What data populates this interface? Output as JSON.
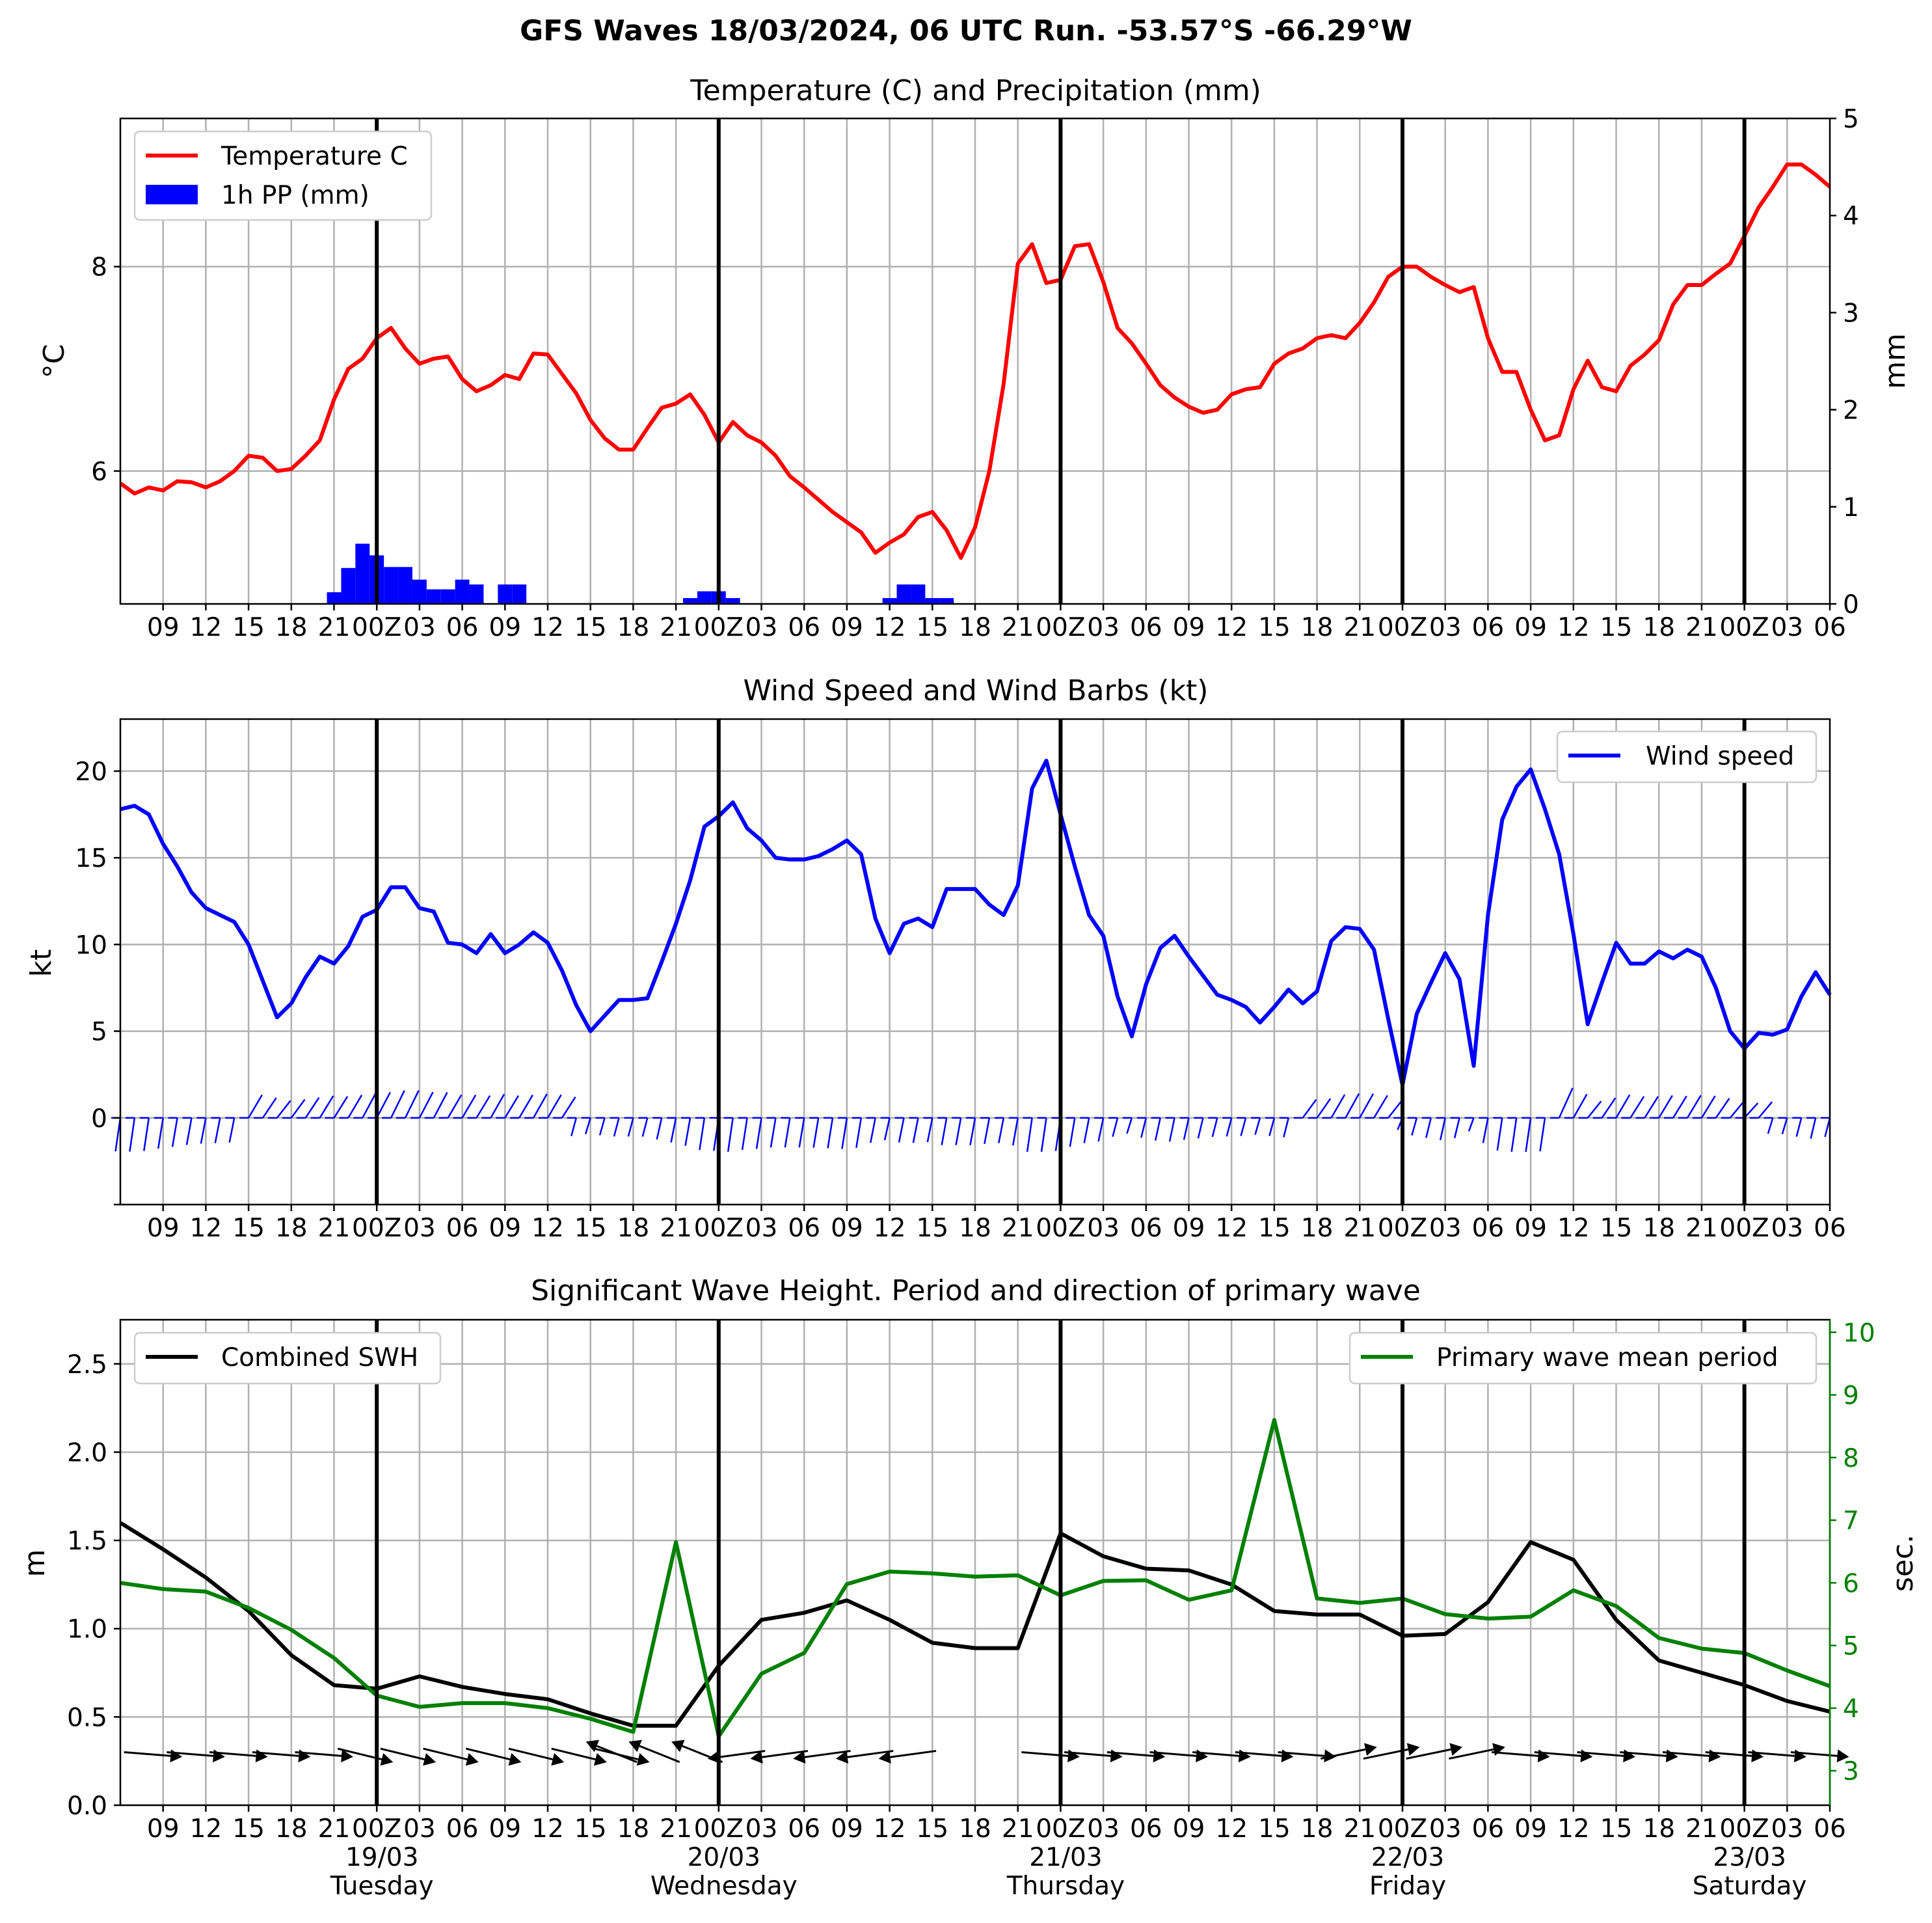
{
  "figure": {
    "suptitle": "GFS Waves 18/03/2024, 06 UTC Run. -53.57°S -66.29°W",
    "x_hour_labels": [
      "09",
      "12",
      "15",
      "18",
      "21",
      "00Z",
      "03",
      "06",
      "09",
      "12",
      "15",
      "18",
      "21",
      "00Z",
      "03",
      "06",
      "09",
      "12",
      "15",
      "18",
      "21",
      "00Z",
      "03",
      "06",
      "09",
      "12",
      "15",
      "18",
      "21",
      "00Z",
      "03",
      "06",
      "09",
      "12",
      "15",
      "18",
      "21",
      "00Z",
      "03",
      "06"
    ],
    "x_hour_labels_panel3": [
      "09",
      "12",
      "15",
      "18",
      "21",
      "00Z",
      "03",
      "06",
      "09",
      "12",
      "15",
      "18",
      "21",
      "00Z",
      "03",
      "06",
      "09",
      "12",
      "15",
      "18",
      "21",
      "00Z",
      "03",
      "06",
      "09",
      "12",
      "15",
      "18",
      "21",
      "00Z",
      "03",
      "06",
      "09",
      "12",
      "15",
      "18",
      "21",
      "00Z",
      "03",
      "06"
    ],
    "date_labels": [
      {
        "date": "19/03",
        "day": "Tuesday"
      },
      {
        "date": "20/03",
        "day": "Wednesday"
      },
      {
        "date": "21/03",
        "day": "Thursday"
      },
      {
        "date": "22/03",
        "day": "Friday"
      },
      {
        "date": "23/03",
        "day": "Saturday"
      }
    ],
    "x_start": "2024-03-18 06:00",
    "x_end": "2024-03-23 06:00",
    "day_boundaries": [
      "2024-03-19 00:00",
      "2024-03-20 00:00",
      "2024-03-21 00:00",
      "2024-03-22 00:00",
      "2024-03-23 00:00"
    ]
  },
  "panel_temp": {
    "title": "Temperature (C) and Precipitation (mm)",
    "ylabel_left": "$^\\circ$C",
    "ylabel_left_display": "°C",
    "ylabel_right": "mm",
    "yticks_left": [
      "6",
      "8"
    ],
    "yticks_right": [
      "0",
      "1",
      "2",
      "3",
      "4",
      "5"
    ],
    "legend": {
      "temp": "Temperature C",
      "pp": "1h PP (mm)"
    },
    "colors": {
      "temp": "#ff0000",
      "pp": "#0000ff"
    }
  },
  "panel_wind": {
    "title": "Wind Speed and Wind Barbs (kt)",
    "ylabel": "kt",
    "yticks": [
      "0",
      "5",
      "10",
      "15",
      "20"
    ],
    "legend": {
      "wind": "Wind speed"
    },
    "colors": {
      "wind": "#0000ff"
    }
  },
  "panel_wave": {
    "title": "Significant Wave Height. Period and direction of primary wave",
    "ylabel_left": "m",
    "ylabel_right": "sec.",
    "yticks_left": [
      "0.0",
      "0.5",
      "1.0",
      "1.5",
      "2.0",
      "2.5"
    ],
    "yticks_right": [
      "3",
      "4",
      "5",
      "6",
      "7",
      "8",
      "9",
      "10"
    ],
    "legend": {
      "swh": "Combined SWH",
      "period": "Primary wave mean period"
    },
    "colors": {
      "swh": "#000000",
      "period": "#008000"
    }
  },
  "chart_data": [
    {
      "type": "line",
      "title": "Temperature (C) and Precipitation (mm)",
      "x_unit": "hours after 2024-03-18 06 UTC",
      "xlim": [
        0,
        120
      ],
      "ylim_left": [
        4.7,
        9.45
      ],
      "ylim_right": [
        0,
        5
      ],
      "series": [
        {
          "name": "Temperature C",
          "axis": "left",
          "x": [
            0,
            1,
            2,
            3,
            4,
            5,
            6,
            7,
            8,
            9,
            10,
            11,
            12,
            13,
            14,
            15,
            16,
            17,
            18,
            19,
            20,
            21,
            22,
            23,
            24,
            25,
            26,
            27,
            28,
            29,
            30,
            31,
            32,
            33,
            34,
            35,
            36,
            37,
            38,
            39,
            40,
            41,
            42,
            43,
            44,
            45,
            46,
            47,
            48,
            49,
            50,
            51,
            52,
            53,
            54,
            55,
            56,
            57,
            58,
            59,
            60,
            61,
            62,
            63,
            64,
            65,
            66,
            67,
            68,
            69,
            70,
            71,
            72,
            73,
            74,
            75,
            76,
            77,
            78,
            79,
            80,
            81,
            82,
            83,
            84,
            85,
            86,
            87,
            88,
            89,
            90,
            91,
            92,
            93,
            94,
            95,
            96,
            97,
            98,
            99,
            100,
            101,
            102,
            103,
            104,
            105,
            106,
            107,
            108,
            109,
            110,
            111,
            112,
            113,
            114,
            115,
            116,
            117,
            118,
            119,
            120
          ],
          "y": [
            5.88,
            5.78,
            5.84,
            5.81,
            5.9,
            5.89,
            5.84,
            5.9,
            6.0,
            6.15,
            6.13,
            6.0,
            6.02,
            6.15,
            6.3,
            6.7,
            7.0,
            7.1,
            7.3,
            7.4,
            7.2,
            7.05,
            7.1,
            7.12,
            6.9,
            6.78,
            6.84,
            6.94,
            6.9,
            7.15,
            7.14,
            6.95,
            6.76,
            6.5,
            6.32,
            6.21,
            6.21,
            6.42,
            6.62,
            6.66,
            6.75,
            6.55,
            6.28,
            6.48,
            6.35,
            6.28,
            6.15,
            5.95,
            5.84,
            5.72,
            5.6,
            5.5,
            5.4,
            5.2,
            5.3,
            5.38,
            5.55,
            5.6,
            5.42,
            5.15,
            5.45,
            6.0,
            6.85,
            8.03,
            8.22,
            7.84,
            7.87,
            8.2,
            8.22,
            7.85,
            7.4,
            7.25,
            7.05,
            6.84,
            6.72,
            6.63,
            6.57,
            6.6,
            6.75,
            6.8,
            6.82,
            7.05,
            7.15,
            7.2,
            7.3,
            7.33,
            7.3,
            7.45,
            7.65,
            7.9,
            8.0,
            8.0,
            7.9,
            7.82,
            7.75,
            7.8,
            7.3,
            6.97,
            6.97,
            6.6,
            6.3,
            6.35,
            6.8,
            7.08,
            6.82,
            6.78,
            7.03,
            7.14,
            7.28,
            7.63,
            7.82,
            7.82,
            7.93,
            8.03,
            8.3,
            8.58,
            8.78,
            9.0,
            9.0,
            8.9,
            8.78
          ]
        },
        {
          "name": "1h PP (mm)",
          "axis": "right",
          "type": "bar",
          "x": [
            15,
            16,
            17,
            18,
            19,
            20,
            21,
            22,
            23,
            24,
            25,
            26,
            27,
            28,
            29,
            30,
            31,
            32,
            33,
            34,
            35,
            36,
            37,
            38,
            39,
            40,
            41,
            42,
            43,
            44,
            45,
            46,
            47,
            48,
            49,
            50,
            51,
            52,
            53,
            54,
            55,
            56,
            57,
            58,
            59,
            60,
            61,
            62,
            63,
            64,
            65,
            66,
            67,
            68,
            69,
            70,
            71,
            72,
            73,
            74,
            75,
            76,
            77,
            78,
            79,
            80,
            81,
            82,
            83,
            84,
            85,
            86,
            87,
            88,
            89,
            90,
            91,
            92,
            93,
            94,
            95,
            96,
            97,
            98,
            99,
            100,
            101,
            102,
            103,
            104,
            105,
            106,
            107,
            108,
            109,
            110,
            111,
            112,
            113,
            114,
            115,
            116,
            117,
            118,
            119,
            120
          ],
          "y": [
            0.12,
            0.37,
            0.62,
            0.5,
            0.38,
            0.38,
            0.25,
            0.15,
            0.15,
            0.25,
            0.2,
            0.0,
            0.2,
            0.2,
            0.0,
            0,
            0,
            0,
            0,
            0,
            0,
            0,
            0,
            0,
            0,
            0.06,
            0.13,
            0.13,
            0.06,
            0,
            0,
            0,
            0,
            0,
            0,
            0,
            0,
            0,
            0,
            0.06,
            0.2,
            0.2,
            0.06,
            0.06,
            0,
            0,
            0,
            0,
            0,
            0,
            0,
            0,
            0,
            0,
            0,
            0,
            0,
            0,
            0,
            0,
            0,
            0,
            0,
            0,
            0,
            0,
            0,
            0,
            0,
            0,
            0,
            0,
            0,
            0,
            0,
            0,
            0,
            0,
            0,
            0,
            0,
            0,
            0,
            0,
            0,
            0,
            0,
            0,
            0,
            0,
            0,
            0,
            0,
            0,
            0,
            0,
            0,
            0,
            0,
            0,
            0,
            0,
            0,
            0,
            0,
            0
          ]
        }
      ]
    },
    {
      "type": "line",
      "title": "Wind Speed and Wind Barbs (kt)",
      "x_unit": "hours after 2024-03-18 06 UTC",
      "xlim": [
        0,
        120
      ],
      "ylim": [
        -5,
        23
      ],
      "series": [
        {
          "name": "Wind speed",
          "x": [
            0,
            1,
            2,
            3,
            4,
            5,
            6,
            7,
            8,
            9,
            10,
            11,
            12,
            13,
            14,
            15,
            16,
            17,
            18,
            19,
            20,
            21,
            22,
            23,
            24,
            25,
            26,
            27,
            28,
            29,
            30,
            31,
            32,
            33,
            34,
            35,
            36,
            37,
            38,
            39,
            40,
            41,
            42,
            43,
            44,
            45,
            46,
            47,
            48,
            49,
            50,
            51,
            52,
            53,
            54,
            55,
            56,
            57,
            58,
            59,
            60,
            61,
            62,
            63,
            64,
            65,
            66,
            67,
            68,
            69,
            70,
            71,
            72,
            73,
            74,
            75,
            76,
            77,
            78,
            79,
            80,
            81,
            82,
            83,
            84,
            85,
            86,
            87,
            88,
            89,
            90,
            91,
            92,
            93,
            94,
            95,
            96,
            97,
            98,
            99,
            100,
            101,
            102,
            103,
            104,
            105,
            106,
            107,
            108,
            109,
            110,
            111,
            112,
            113,
            114,
            115,
            116,
            117,
            118,
            119,
            120
          ],
          "y": [
            17.8,
            18.0,
            17.5,
            15.8,
            14.5,
            13.0,
            12.1,
            11.7,
            11.3,
            10.0,
            7.9,
            5.8,
            6.6,
            8.1,
            9.3,
            8.9,
            9.9,
            11.6,
            12.0,
            13.3,
            13.3,
            12.1,
            11.9,
            10.1,
            10.0,
            9.5,
            10.6,
            9.5,
            10.0,
            10.7,
            10.1,
            8.5,
            6.5,
            5.0,
            5.9,
            6.8,
            6.8,
            6.9,
            9.0,
            11.2,
            13.7,
            16.8,
            17.4,
            18.2,
            16.7,
            16.0,
            15.0,
            14.9,
            14.9,
            15.1,
            15.5,
            16.0,
            15.2,
            11.5,
            9.5,
            11.2,
            11.5,
            11.0,
            13.2,
            13.2,
            13.2,
            12.3,
            11.7,
            13.4,
            19.0,
            20.6,
            17.5,
            14.5,
            11.7,
            10.5,
            7.0,
            4.7,
            7.7,
            9.8,
            10.5,
            9.3,
            8.2,
            7.1,
            6.8,
            6.4,
            5.5,
            6.4,
            7.4,
            6.6,
            7.3,
            10.2,
            11.0,
            10.9,
            9.7,
            5.7,
            1.9,
            6.0,
            7.8,
            9.5,
            8.0,
            3.0,
            11.7,
            17.2,
            19.1,
            20.1,
            17.8,
            15.2,
            10.6,
            5.4,
            7.8,
            10.1,
            8.9,
            8.9,
            9.6,
            9.2,
            9.7,
            9.3,
            7.5,
            5.0,
            4.0,
            4.9,
            4.8,
            5.1,
            7.0,
            8.4,
            7.1
          ]
        }
      ],
      "barbs": "wind direction/speed barbs along y=0 every hour"
    },
    {
      "type": "line",
      "title": "Significant Wave Height. Period and direction of primary wave",
      "x_unit": "hours after 2024-03-18 06 UTC",
      "xlim": [
        0,
        120
      ],
      "ylim_left": [
        0,
        2.75
      ],
      "ylim_right": [
        2.45,
        10.2
      ],
      "series": [
        {
          "name": "Combined SWH",
          "axis": "left",
          "x": [
            0,
            3,
            6,
            9,
            12,
            15,
            18,
            21,
            24,
            27,
            30,
            33,
            36,
            39,
            42,
            45,
            48,
            51,
            54,
            57,
            60,
            63,
            66,
            69,
            72,
            75,
            78,
            81,
            84,
            87,
            90,
            93,
            96,
            99,
            102,
            105,
            108,
            111,
            114,
            117,
            120
          ],
          "y": [
            1.6,
            1.45,
            1.29,
            1.1,
            0.85,
            0.68,
            0.66,
            0.73,
            0.67,
            0.63,
            0.6,
            0.52,
            0.45,
            0.45,
            0.79,
            1.05,
            1.09,
            1.16,
            1.05,
            0.92,
            0.89,
            0.89,
            1.54,
            1.41,
            1.34,
            1.33,
            1.25,
            1.1,
            1.08,
            1.08,
            0.96,
            0.97,
            1.15,
            1.49,
            1.39,
            1.05,
            0.82,
            0.75,
            0.68,
            0.59,
            0.53
          ]
        },
        {
          "name": "Primary wave mean period",
          "axis": "right",
          "x": [
            0,
            3,
            6,
            9,
            12,
            15,
            18,
            21,
            24,
            27,
            30,
            33,
            36,
            39,
            42,
            45,
            48,
            51,
            54,
            57,
            60,
            63,
            66,
            69,
            72,
            75,
            78,
            81,
            84,
            87,
            90,
            93,
            96,
            99,
            102,
            105,
            108,
            111,
            114,
            117,
            120
          ],
          "y": [
            6.0,
            5.9,
            5.86,
            5.6,
            5.25,
            4.8,
            4.2,
            4.02,
            4.08,
            4.08,
            4.0,
            3.83,
            3.62,
            6.65,
            3.55,
            4.55,
            4.88,
            5.98,
            6.18,
            6.15,
            6.1,
            6.12,
            5.8,
            6.03,
            6.04,
            5.73,
            5.88,
            8.6,
            5.75,
            5.68,
            5.75,
            5.5,
            5.43,
            5.46,
            5.88,
            5.63,
            5.12,
            4.95,
            4.88,
            4.6,
            4.35
          ]
        }
      ],
      "arrows": "primary wave direction arrows at 3-hourly steps near y=0.3 m"
    }
  ]
}
